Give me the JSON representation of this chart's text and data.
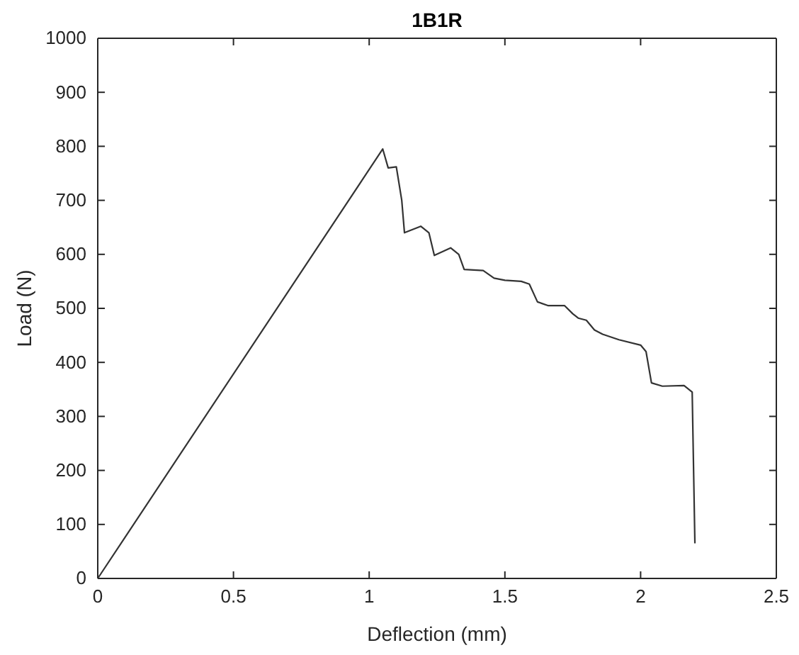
{
  "chart_data": {
    "type": "line",
    "title": "1B1R",
    "xlabel": "Deflection (mm)",
    "ylabel": "Load (N)",
    "xlim": [
      0,
      2.5
    ],
    "xticks": [
      0,
      0.5,
      1,
      1.5,
      2,
      2.5
    ],
    "ylim": [
      0,
      1000
    ],
    "yticks": [
      0,
      100,
      200,
      300,
      400,
      500,
      600,
      700,
      800,
      900,
      1000
    ],
    "grid": false,
    "series": [
      {
        "color": "#333333",
        "x": [
          0,
          1.05,
          1.07,
          1.1,
          1.12,
          1.13,
          1.19,
          1.22,
          1.24,
          1.3,
          1.33,
          1.35,
          1.42,
          1.46,
          1.5,
          1.56,
          1.59,
          1.62,
          1.66,
          1.72,
          1.75,
          1.77,
          1.8,
          1.83,
          1.86,
          1.92,
          2.0,
          2.02,
          2.04,
          2.08,
          2.16,
          2.19,
          2.2
        ],
        "values": [
          0,
          795,
          760,
          762,
          700,
          640,
          652,
          640,
          598,
          612,
          600,
          572,
          570,
          556,
          552,
          550,
          545,
          512,
          505,
          505,
          490,
          482,
          478,
          460,
          452,
          442,
          432,
          420,
          362,
          356,
          357,
          345,
          65
        ]
      }
    ]
  }
}
